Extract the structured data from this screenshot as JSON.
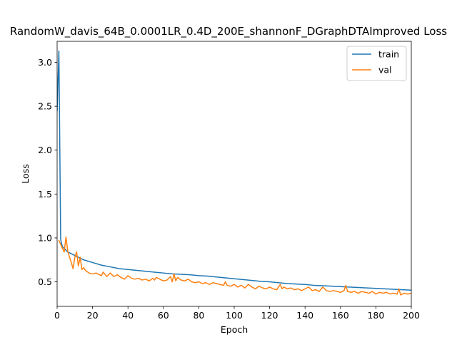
{
  "chart_data": {
    "type": "line",
    "title": "RandomW_davis_64B_0.0001LR_0.4D_200E_shannonF_DGraphDTAImproved Loss",
    "xlabel": "Epoch",
    "ylabel": "Loss",
    "xlim": [
      0,
      200
    ],
    "ylim": [
      0.22,
      3.24
    ],
    "x_ticks": [
      0,
      20,
      40,
      60,
      80,
      100,
      120,
      140,
      160,
      180,
      200
    ],
    "y_ticks": [
      0.5,
      1.0,
      1.5,
      2.0,
      2.5,
      3.0
    ],
    "x_tick_labels": [
      "0",
      "20",
      "40",
      "60",
      "80",
      "100",
      "120",
      "140",
      "160",
      "180",
      "200"
    ],
    "y_tick_labels": [
      "0.5",
      "1.0",
      "1.5",
      "2.0",
      "2.5",
      "3.0"
    ],
    "grid": false,
    "legend": "top-right",
    "colors": {
      "train": "#1f77b4",
      "val": "#ff7f0e"
    },
    "series": [
      {
        "name": "train",
        "x": [
          0,
          1,
          2,
          3,
          4,
          5,
          6,
          8,
          10,
          12,
          15,
          20,
          25,
          30,
          35,
          40,
          45,
          50,
          55,
          60,
          65,
          70,
          75,
          80,
          85,
          90,
          95,
          100,
          105,
          110,
          115,
          120,
          125,
          130,
          135,
          140,
          145,
          150,
          155,
          160,
          165,
          170,
          175,
          180,
          185,
          190,
          195,
          200
        ],
        "values": [
          2.45,
          3.13,
          0.98,
          0.9,
          0.88,
          0.86,
          0.84,
          0.82,
          0.8,
          0.78,
          0.75,
          0.72,
          0.69,
          0.67,
          0.65,
          0.64,
          0.63,
          0.62,
          0.61,
          0.6,
          0.59,
          0.585,
          0.58,
          0.57,
          0.565,
          0.555,
          0.545,
          0.535,
          0.525,
          0.515,
          0.505,
          0.5,
          0.49,
          0.48,
          0.475,
          0.47,
          0.46,
          0.455,
          0.45,
          0.445,
          0.44,
          0.435,
          0.43,
          0.425,
          0.42,
          0.415,
          0.41,
          0.405
        ]
      },
      {
        "name": "val",
        "x": [
          1,
          2,
          3,
          4,
          5,
          6,
          7,
          8,
          9,
          10,
          11,
          12,
          13,
          14,
          15,
          16,
          18,
          20,
          22,
          24,
          25,
          26,
          28,
          30,
          32,
          34,
          36,
          38,
          39,
          40,
          42,
          44,
          46,
          48,
          50,
          52,
          54,
          55,
          56,
          58,
          60,
          62,
          64,
          65,
          66,
          67,
          68,
          70,
          72,
          74,
          76,
          78,
          80,
          82,
          84,
          86,
          88,
          90,
          92,
          94,
          95,
          96,
          98,
          100,
          102,
          104,
          106,
          108,
          110,
          112,
          114,
          116,
          118,
          120,
          122,
          124,
          126,
          127,
          128,
          130,
          132,
          134,
          136,
          138,
          140,
          142,
          144,
          146,
          148,
          150,
          152,
          154,
          156,
          158,
          160,
          162,
          163,
          164,
          166,
          168,
          170,
          172,
          174,
          176,
          178,
          180,
          182,
          184,
          186,
          188,
          190,
          192,
          193,
          194,
          196,
          198,
          200
        ],
        "values": [
          0.97,
          0.93,
          0.88,
          0.84,
          1.01,
          0.85,
          0.78,
          0.72,
          0.65,
          0.78,
          0.84,
          0.68,
          0.78,
          0.64,
          0.66,
          0.63,
          0.6,
          0.59,
          0.6,
          0.58,
          0.57,
          0.61,
          0.56,
          0.6,
          0.56,
          0.58,
          0.55,
          0.53,
          0.55,
          0.57,
          0.54,
          0.53,
          0.54,
          0.52,
          0.53,
          0.51,
          0.54,
          0.52,
          0.55,
          0.53,
          0.51,
          0.52,
          0.56,
          0.5,
          0.59,
          0.51,
          0.55,
          0.52,
          0.51,
          0.53,
          0.5,
          0.49,
          0.5,
          0.48,
          0.49,
          0.47,
          0.49,
          0.48,
          0.47,
          0.46,
          0.5,
          0.46,
          0.45,
          0.47,
          0.44,
          0.46,
          0.43,
          0.47,
          0.44,
          0.42,
          0.45,
          0.43,
          0.42,
          0.44,
          0.42,
          0.41,
          0.47,
          0.42,
          0.44,
          0.42,
          0.43,
          0.41,
          0.42,
          0.4,
          0.42,
          0.44,
          0.4,
          0.41,
          0.39,
          0.44,
          0.4,
          0.39,
          0.4,
          0.39,
          0.38,
          0.4,
          0.46,
          0.39,
          0.38,
          0.39,
          0.37,
          0.39,
          0.38,
          0.37,
          0.39,
          0.36,
          0.38,
          0.37,
          0.38,
          0.36,
          0.37,
          0.36,
          0.42,
          0.35,
          0.37,
          0.36,
          0.37
        ]
      }
    ]
  }
}
